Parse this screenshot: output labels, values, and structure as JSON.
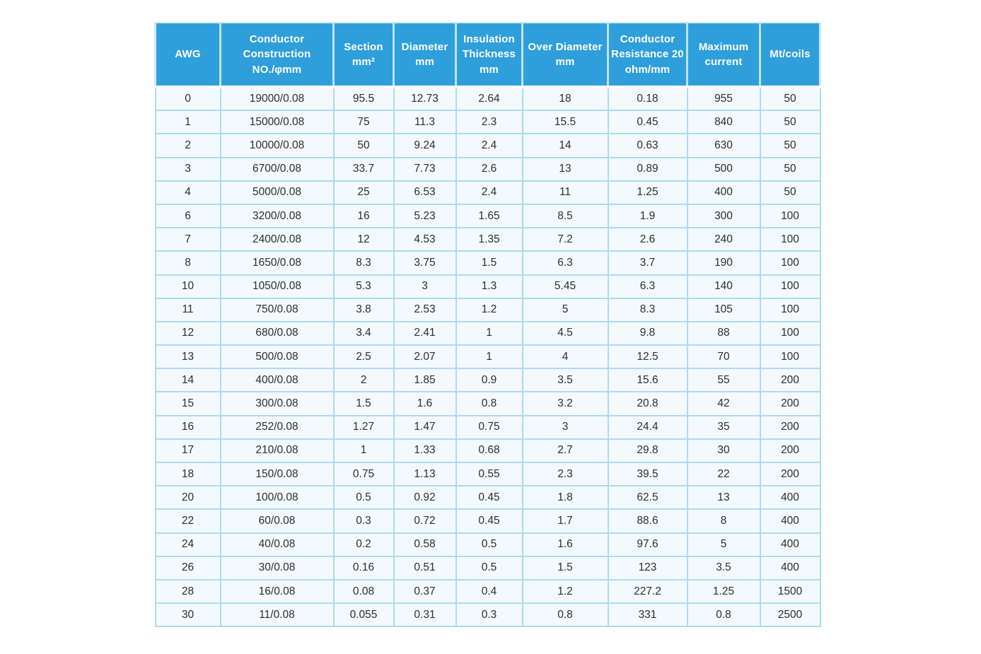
{
  "colors": {
    "header_bg": "#2F9FDB",
    "header_text": "#ffffff",
    "grid_line": "#ABDBF3",
    "header_divider": "#BFE3F6",
    "cell_bg": "#F4F9FD",
    "cell_text": "#2D2D2D",
    "page_bg": "#ffffff"
  },
  "table": {
    "header_lines": [
      [
        "AWG"
      ],
      [
        "Conductor",
        "Construction",
        "NO./φmm"
      ],
      [
        "Section",
        "mm²"
      ],
      [
        "Diameter",
        "mm"
      ],
      [
        "Insulation",
        "Thickness",
        "mm"
      ],
      [
        "Over Diameter",
        "mm"
      ],
      [
        "Conductor",
        "Resistance 20",
        "ohm/mm"
      ],
      [
        "Maximum",
        "current"
      ],
      [
        "Mt/coils"
      ]
    ],
    "column_ids": [
      "awg",
      "construction",
      "section",
      "diameter",
      "insulation-thickness",
      "over-diameter",
      "resistance",
      "max-current",
      "mt-coils"
    ]
  },
  "chart_data": {
    "type": "table",
    "title": "AWG wire specification table",
    "columns": [
      "AWG",
      "Conductor Construction NO./φmm",
      "Section mm²",
      "Diameter mm",
      "Insulation Thickness mm",
      "Over Diameter mm",
      "Conductor Resistance 20 ohm/mm",
      "Maximum current",
      "Mt/coils"
    ],
    "rows": [
      [
        "0",
        "19000/0.08",
        "95.5",
        "12.73",
        "2.64",
        "18",
        "0.18",
        "955",
        "50"
      ],
      [
        "1",
        "15000/0.08",
        "75",
        "11.3",
        "2.3",
        "15.5",
        "0.45",
        "840",
        "50"
      ],
      [
        "2",
        "10000/0.08",
        "50",
        "9.24",
        "2.4",
        "14",
        "0.63",
        "630",
        "50"
      ],
      [
        "3",
        "6700/0.08",
        "33.7",
        "7.73",
        "2.6",
        "13",
        "0.89",
        "500",
        "50"
      ],
      [
        "4",
        "5000/0.08",
        "25",
        "6.53",
        "2.4",
        "11",
        "1.25",
        "400",
        "50"
      ],
      [
        "6",
        "3200/0.08",
        "16",
        "5.23",
        "1.65",
        "8.5",
        "1.9",
        "300",
        "100"
      ],
      [
        "7",
        "2400/0.08",
        "12",
        "4.53",
        "1.35",
        "7.2",
        "2.6",
        "240",
        "100"
      ],
      [
        "8",
        "1650/0.08",
        "8.3",
        "3.75",
        "1.5",
        "6.3",
        "3.7",
        "190",
        "100"
      ],
      [
        "10",
        "1050/0.08",
        "5.3",
        "3",
        "1.3",
        "5.45",
        "6.3",
        "140",
        "100"
      ],
      [
        "11",
        "750/0.08",
        "3.8",
        "2.53",
        "1.2",
        "5",
        "8.3",
        "105",
        "100"
      ],
      [
        "12",
        "680/0.08",
        "3.4",
        "2.41",
        "1",
        "4.5",
        "9.8",
        "88",
        "100"
      ],
      [
        "13",
        "500/0.08",
        "2.5",
        "2.07",
        "1",
        "4",
        "12.5",
        "70",
        "100"
      ],
      [
        "14",
        "400/0.08",
        "2",
        "1.85",
        "0.9",
        "3.5",
        "15.6",
        "55",
        "200"
      ],
      [
        "15",
        "300/0.08",
        "1.5",
        "1.6",
        "0.8",
        "3.2",
        "20.8",
        "42",
        "200"
      ],
      [
        "16",
        "252/0.08",
        "1.27",
        "1.47",
        "0.75",
        "3",
        "24.4",
        "35",
        "200"
      ],
      [
        "17",
        "210/0.08",
        "1",
        "1.33",
        "0.68",
        "2.7",
        "29.8",
        "30",
        "200"
      ],
      [
        "18",
        "150/0.08",
        "0.75",
        "1.13",
        "0.55",
        "2.3",
        "39.5",
        "22",
        "200"
      ],
      [
        "20",
        "100/0.08",
        "0.5",
        "0.92",
        "0.45",
        "1.8",
        "62.5",
        "13",
        "400"
      ],
      [
        "22",
        "60/0.08",
        "0.3",
        "0.72",
        "0.45",
        "1.7",
        "88.6",
        "8",
        "400"
      ],
      [
        "24",
        "40/0.08",
        "0.2",
        "0.58",
        "0.5",
        "1.6",
        "97.6",
        "5",
        "400"
      ],
      [
        "26",
        "30/0.08",
        "0.16",
        "0.51",
        "0.5",
        "1.5",
        "123",
        "3.5",
        "400"
      ],
      [
        "28",
        "16/0.08",
        "0.08",
        "0.37",
        "0.4",
        "1.2",
        "227.2",
        "1.25",
        "1500"
      ],
      [
        "30",
        "11/0.08",
        "0.055",
        "0.31",
        "0.3",
        "0.8",
        "331",
        "0.8",
        "2500"
      ]
    ]
  }
}
